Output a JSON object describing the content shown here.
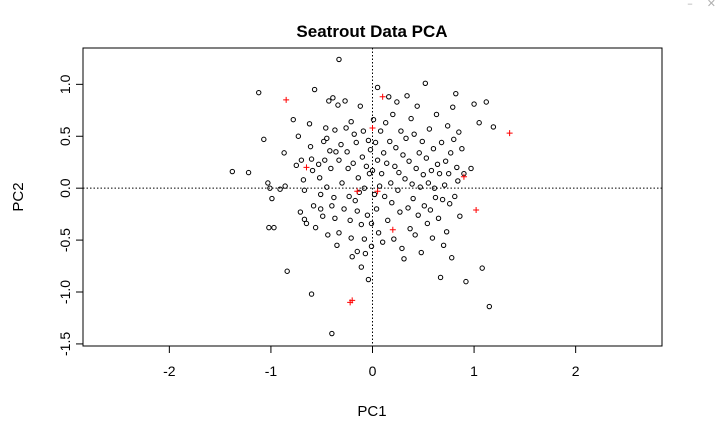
{
  "window_controls": {
    "minimize": "–",
    "close": "✕"
  },
  "colors": {
    "point_black": "#000000",
    "point_red": "#ff0000",
    "axis": "#000000",
    "refline": "#000000"
  },
  "chart_data": {
    "type": "scatter",
    "title": "Seatrout Data PCA",
    "xlabel": "PC1",
    "ylabel": "PC2",
    "xlim": [
      -2.85,
      2.85
    ],
    "ylim": [
      -1.52,
      1.35
    ],
    "xticks": [
      -2,
      -1,
      0,
      1,
      2
    ],
    "xtick_labels": [
      "-2",
      "-1",
      "0",
      "1",
      "2"
    ],
    "yticks": [
      -1.5,
      -1.0,
      -0.5,
      0.0,
      0.5,
      1.0
    ],
    "ytick_labels": [
      "-1.5",
      "-1.0",
      "-0.5",
      "0.0",
      "0.5",
      "1.0"
    ],
    "reference_lines": {
      "x": 0,
      "y": 0,
      "style": "dotted"
    },
    "grid": false,
    "series": [
      {
        "marker": "open-circle",
        "color": "#000000",
        "points": [
          [
            -1.38,
            0.16
          ],
          [
            -1.22,
            0.15
          ],
          [
            -1.12,
            0.92
          ],
          [
            -1.07,
            0.47
          ],
          [
            -1.03,
            0.05
          ],
          [
            -1.01,
            0.0
          ],
          [
            -0.99,
            -0.1
          ],
          [
            -1.02,
            -0.38
          ],
          [
            -0.97,
            -0.38
          ],
          [
            -0.91,
            -0.01
          ],
          [
            -0.87,
            0.34
          ],
          [
            -0.86,
            0.02
          ],
          [
            -0.84,
            -0.8
          ],
          [
            -0.78,
            0.66
          ],
          [
            -0.75,
            0.22
          ],
          [
            -0.73,
            0.5
          ],
          [
            -0.7,
            0.27
          ],
          [
            -0.68,
            0.08
          ],
          [
            -0.67,
            -0.02
          ],
          [
            -0.71,
            -0.23
          ],
          [
            -0.67,
            -0.3
          ],
          [
            -0.65,
            -0.34
          ],
          [
            -0.62,
            0.62
          ],
          [
            -0.61,
            0.4
          ],
          [
            -0.6,
            0.28
          ],
          [
            -0.59,
            0.17
          ],
          [
            -0.58,
            -0.17
          ],
          [
            -0.6,
            -1.02
          ],
          [
            -0.57,
            0.95
          ],
          [
            -0.56,
            -0.38
          ],
          [
            -0.53,
            0.23
          ],
          [
            -0.52,
            0.1
          ],
          [
            -0.51,
            -0.06
          ],
          [
            -0.51,
            -0.2
          ],
          [
            -0.49,
            -0.27
          ],
          [
            -0.48,
            0.45
          ],
          [
            -0.47,
            0.27
          ],
          [
            -0.46,
            0.58
          ],
          [
            -0.45,
            0.48
          ],
          [
            -0.45,
            0.01
          ],
          [
            -0.44,
            -0.45
          ],
          [
            -0.43,
            0.84
          ],
          [
            -0.42,
            0.36
          ],
          [
            -0.41,
            0.19
          ],
          [
            -0.4,
            -0.17
          ],
          [
            -0.4,
            -1.4
          ],
          [
            -0.39,
            0.87
          ],
          [
            -0.38,
            -0.09
          ],
          [
            -0.37,
            -0.29
          ],
          [
            -0.37,
            0.56
          ],
          [
            -0.36,
            0.35
          ],
          [
            -0.35,
            -0.55
          ],
          [
            -0.34,
            0.8
          ],
          [
            -0.33,
            0.27
          ],
          [
            -0.33,
            1.24
          ],
          [
            -0.33,
            -0.43
          ],
          [
            -0.31,
            0.42
          ],
          [
            -0.3,
            0.05
          ],
          [
            -0.28,
            -0.2
          ],
          [
            -0.27,
            0.84
          ],
          [
            -0.26,
            0.58
          ],
          [
            -0.25,
            0.35
          ],
          [
            -0.24,
            0.19
          ],
          [
            -0.23,
            -0.08
          ],
          [
            -0.22,
            -0.31
          ],
          [
            -0.21,
            0.64
          ],
          [
            -0.21,
            -0.48
          ],
          [
            -0.2,
            -0.66
          ],
          [
            -0.19,
            0.24
          ],
          [
            -0.18,
            0.52
          ],
          [
            -0.17,
            -0.12
          ],
          [
            -0.16,
            0.44
          ],
          [
            -0.15,
            -0.22
          ],
          [
            -0.15,
            -0.61
          ],
          [
            -0.14,
            0.1
          ],
          [
            -0.13,
            -0.04
          ],
          [
            -0.12,
            0.79
          ],
          [
            -0.11,
            -0.35
          ],
          [
            -0.11,
            -0.76
          ],
          [
            -0.1,
            0.3
          ],
          [
            -0.09,
            0.55
          ],
          [
            -0.08,
            0.0
          ],
          [
            -0.08,
            -0.49
          ],
          [
            -0.07,
            -0.63
          ],
          [
            -0.06,
            0.21
          ],
          [
            -0.05,
            -0.26
          ],
          [
            -0.04,
            0.46
          ],
          [
            -0.04,
            -0.88
          ],
          [
            -0.03,
            0.14
          ],
          [
            -0.02,
            0.37
          ],
          [
            -0.01,
            -0.34
          ],
          [
            -0.01,
            -0.56
          ],
          [
            0.0,
            0.17
          ],
          [
            0.01,
            0.66
          ],
          [
            0.02,
            -0.06
          ],
          [
            0.03,
            0.44
          ],
          [
            0.04,
            -0.2
          ],
          [
            0.05,
            0.97
          ],
          [
            0.05,
            0.27
          ],
          [
            0.06,
            -0.43
          ],
          [
            0.07,
            0.02
          ],
          [
            0.08,
            0.55
          ],
          [
            0.09,
            0.14
          ],
          [
            0.1,
            -0.52
          ],
          [
            0.11,
            0.34
          ],
          [
            0.12,
            -0.08
          ],
          [
            0.13,
            0.63
          ],
          [
            0.14,
            0.24
          ],
          [
            0.15,
            -0.31
          ],
          [
            0.16,
            0.88
          ],
          [
            0.17,
            0.45
          ],
          [
            0.18,
            0.05
          ],
          [
            0.19,
            -0.14
          ],
          [
            0.2,
            0.71
          ],
          [
            0.21,
            -0.49
          ],
          [
            0.22,
            0.21
          ],
          [
            0.23,
            0.39
          ],
          [
            0.24,
            0.83
          ],
          [
            0.25,
            -0.02
          ],
          [
            0.26,
            0.15
          ],
          [
            0.27,
            -0.23
          ],
          [
            0.28,
            0.55
          ],
          [
            0.29,
            -0.58
          ],
          [
            0.3,
            0.32
          ],
          [
            0.31,
            -0.68
          ],
          [
            0.32,
            0.09
          ],
          [
            0.33,
            0.48
          ],
          [
            0.34,
            0.89
          ],
          [
            0.35,
            -0.19
          ],
          [
            0.36,
            0.26
          ],
          [
            0.37,
            -0.39
          ],
          [
            0.38,
            0.67
          ],
          [
            0.39,
            0.04
          ],
          [
            0.4,
            -0.1
          ],
          [
            0.41,
            0.52
          ],
          [
            0.42,
            -0.45
          ],
          [
            0.43,
            0.19
          ],
          [
            0.44,
            0.79
          ],
          [
            0.45,
            -0.26
          ],
          [
            0.46,
            0.34
          ],
          [
            0.47,
            0.01
          ],
          [
            0.48,
            -0.62
          ],
          [
            0.49,
            0.45
          ],
          [
            0.5,
            0.13
          ],
          [
            0.51,
            -0.17
          ],
          [
            0.52,
            1.01
          ],
          [
            0.53,
            0.29
          ],
          [
            0.54,
            -0.34
          ],
          [
            0.55,
            0.05
          ],
          [
            0.56,
            0.57
          ],
          [
            0.57,
            -0.21
          ],
          [
            0.58,
            0.17
          ],
          [
            0.59,
            -0.48
          ],
          [
            0.6,
            0.38
          ],
          [
            0.61,
            0.0
          ],
          [
            0.62,
            -0.09
          ],
          [
            0.63,
            0.71
          ],
          [
            0.64,
            0.23
          ],
          [
            0.65,
            -0.29
          ],
          [
            0.66,
            0.14
          ],
          [
            0.67,
            -0.86
          ],
          [
            0.68,
            0.44
          ],
          [
            0.69,
            -0.11
          ],
          [
            0.7,
            -0.55
          ],
          [
            0.71,
            0.03
          ],
          [
            0.72,
            0.26
          ],
          [
            0.73,
            -0.42
          ],
          [
            0.74,
            0.6
          ],
          [
            0.75,
            0.14
          ],
          [
            0.76,
            -0.15
          ],
          [
            0.77,
            0.34
          ],
          [
            0.78,
            -0.67
          ],
          [
            0.79,
            0.78
          ],
          [
            0.8,
            0.47
          ],
          [
            0.81,
            -0.08
          ],
          [
            0.82,
            0.91
          ],
          [
            0.83,
            0.2
          ],
          [
            0.84,
            0.07
          ],
          [
            0.85,
            0.54
          ],
          [
            0.86,
            -0.27
          ],
          [
            0.88,
            0.38
          ],
          [
            0.9,
            0.14
          ],
          [
            0.92,
            -0.9
          ],
          [
            0.97,
            0.19
          ],
          [
            1.0,
            0.81
          ],
          [
            1.05,
            0.63
          ],
          [
            1.08,
            -0.77
          ],
          [
            1.12,
            0.83
          ],
          [
            1.15,
            -1.14
          ],
          [
            1.19,
            0.59
          ]
        ]
      },
      {
        "marker": "plus",
        "color": "#ff0000",
        "points": [
          [
            -0.85,
            0.85
          ],
          [
            -0.65,
            0.2
          ],
          [
            -0.22,
            -1.1
          ],
          [
            -0.2,
            -1.08
          ],
          [
            -0.15,
            -0.03
          ],
          [
            0.0,
            0.58
          ],
          [
            0.05,
            -0.03
          ],
          [
            0.1,
            0.88
          ],
          [
            0.2,
            -0.4
          ],
          [
            0.9,
            0.11
          ],
          [
            1.02,
            -0.21
          ],
          [
            1.35,
            0.53
          ]
        ]
      }
    ]
  }
}
